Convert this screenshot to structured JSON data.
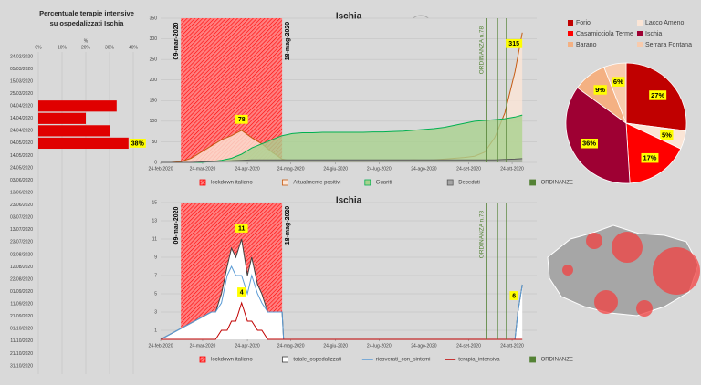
{
  "chart_data": [
    {
      "type": "bar",
      "orientation": "horizontal",
      "title": "Percentuale terapie intensive su ospedalizzati Ischia",
      "xlabel": "%",
      "categories": [
        "24/02/2020",
        "05/03/2020",
        "15/03/2020",
        "25/03/2020",
        "04/04/2020",
        "14/04/2020",
        "24/04/2020",
        "04/05/2020",
        "14/05/2020",
        "24/05/2020",
        "03/06/2020",
        "13/06/2020",
        "23/06/2020",
        "03/07/2020",
        "13/07/2020",
        "23/07/2020",
        "02/08/2020",
        "12/08/2020",
        "22/08/2020",
        "01/09/2020",
        "11/09/2020",
        "21/09/2020",
        "01/10/2020",
        "11/10/2020",
        "21/10/2020",
        "31/10/2020"
      ],
      "values": [
        null,
        null,
        null,
        null,
        33,
        20,
        30,
        38,
        null,
        null,
        null,
        null,
        null,
        null,
        null,
        null,
        null,
        null,
        null,
        null,
        null,
        null,
        null,
        null,
        null,
        null
      ],
      "value_labels": [
        null,
        null,
        null,
        null,
        null,
        null,
        null,
        "38%",
        null,
        null,
        null,
        null,
        null,
        null,
        null,
        null,
        null,
        null,
        null,
        null,
        null,
        null,
        null,
        null,
        null,
        null
      ],
      "color": "#e00000",
      "xlim": [
        0,
        40
      ],
      "xticks": [
        {
          "value": 0,
          "label": "0%"
        },
        {
          "value": 10,
          "label": "10%"
        },
        {
          "value": 20,
          "label": "20%"
        },
        {
          "value": 30,
          "label": "30%"
        },
        {
          "value": 40,
          "label": "40%"
        }
      ],
      "grid": true
    },
    {
      "type": "area",
      "title": "Ischia",
      "x": [
        "2020-02-24",
        "2020-03-02",
        "2020-03-09",
        "2020-03-16",
        "2020-03-23",
        "2020-03-30",
        "2020-04-06",
        "2020-04-13",
        "2020-04-20",
        "2020-04-27",
        "2020-05-04",
        "2020-05-11",
        "2020-05-18",
        "2020-05-25",
        "2020-06-01",
        "2020-06-08",
        "2020-06-15",
        "2020-06-22",
        "2020-06-29",
        "2020-07-06",
        "2020-07-13",
        "2020-07-20",
        "2020-07-27",
        "2020-08-03",
        "2020-08-10",
        "2020-08-17",
        "2020-08-24",
        "2020-08-31",
        "2020-09-07",
        "2020-09-14",
        "2020-09-21",
        "2020-09-28",
        "2020-10-05",
        "2020-10-12",
        "2020-10-19",
        "2020-10-26",
        "2020-10-31"
      ],
      "series": [
        {
          "name": "Attualmente positivi",
          "color": "#c55a11",
          "fill": "#fbe5d6",
          "values": [
            0,
            0,
            2,
            10,
            25,
            40,
            55,
            65,
            78,
            60,
            45,
            25,
            8,
            3,
            2,
            2,
            2,
            1,
            1,
            1,
            1,
            2,
            3,
            5,
            5,
            6,
            5,
            6,
            8,
            10,
            12,
            15,
            25,
            60,
            120,
            220,
            315
          ],
          "value_labels": [
            null,
            null,
            null,
            null,
            null,
            null,
            null,
            null,
            "78",
            null,
            null,
            null,
            null,
            null,
            null,
            null,
            null,
            null,
            null,
            null,
            null,
            null,
            null,
            null,
            null,
            null,
            null,
            null,
            null,
            null,
            null,
            null,
            null,
            null,
            null,
            null,
            "315"
          ]
        },
        {
          "name": "Guariti",
          "color": "#00b050",
          "fill": "#a9d18e",
          "values": [
            0,
            0,
            0,
            0,
            0,
            2,
            5,
            10,
            20,
            35,
            45,
            55,
            65,
            70,
            72,
            72,
            73,
            73,
            73,
            73,
            73,
            74,
            74,
            75,
            76,
            78,
            80,
            82,
            85,
            90,
            95,
            100,
            102,
            104,
            106,
            110,
            115
          ]
        },
        {
          "name": "Deceduti",
          "color": "#595959",
          "fill": "#a5a5a5",
          "values": [
            0,
            0,
            0,
            0,
            1,
            2,
            3,
            4,
            5,
            6,
            6,
            6,
            6,
            6,
            6,
            6,
            6,
            6,
            6,
            6,
            6,
            6,
            6,
            6,
            6,
            6,
            6,
            6,
            6,
            6,
            6,
            6,
            6,
            6,
            7,
            8,
            9
          ]
        }
      ],
      "lockdown": {
        "name": "lockdown italiano",
        "start": "2020-03-09",
        "end": "2020-05-18",
        "start_label": "09-mar-2020",
        "end_label": "18-mag-2020"
      },
      "ordinanze": {
        "name": "ORDINANZE",
        "dates": [
          "2020-10-06",
          "2020-10-14",
          "2020-10-20",
          "2020-10-28"
        ],
        "label": "ORDINANZA n.78",
        "color": "#548235"
      },
      "xlim": [
        "2020-02-24",
        "2020-11-10"
      ],
      "xticks": [
        {
          "value": "2020-02-24",
          "label": "24-feb-2020"
        },
        {
          "value": "2020-03-24",
          "label": "24-mar-2020"
        },
        {
          "value": "2020-04-24",
          "label": "24-apr-2020"
        },
        {
          "value": "2020-05-24",
          "label": "24-mag-2020"
        },
        {
          "value": "2020-06-24",
          "label": "24-giu-2020"
        },
        {
          "value": "2020-07-24",
          "label": "24-lug-2020"
        },
        {
          "value": "2020-08-24",
          "label": "24-ago-2020"
        },
        {
          "value": "2020-09-24",
          "label": "24-set-2020"
        },
        {
          "value": "2020-10-24",
          "label": "24-ott-2020"
        }
      ],
      "ylim": [
        0,
        350
      ],
      "yticks": [
        0,
        50,
        100,
        150,
        200,
        250,
        300,
        350
      ],
      "grid": true
    },
    {
      "type": "line",
      "title": "Ischia",
      "x": [
        "2020-02-24",
        "2020-03-30",
        "2020-04-02",
        "2020-04-06",
        "2020-04-10",
        "2020-04-13",
        "2020-04-16",
        "2020-04-20",
        "2020-04-24",
        "2020-04-27",
        "2020-05-01",
        "2020-05-04",
        "2020-05-08",
        "2020-05-11",
        "2020-05-15",
        "2020-05-18",
        "2020-05-19",
        "2020-10-26",
        "2020-10-28",
        "2020-10-31"
      ],
      "series": [
        {
          "name": "totale_ospedalizzati",
          "color": "#404040",
          "fill": "#ffffff",
          "values": [
            0,
            3,
            3,
            5,
            8,
            10,
            9,
            11,
            7,
            9,
            6,
            5,
            3,
            3,
            3,
            3,
            0,
            0,
            3,
            6
          ],
          "value_labels": [
            null,
            null,
            null,
            null,
            null,
            null,
            null,
            "11",
            null,
            null,
            null,
            null,
            null,
            null,
            null,
            null,
            null,
            null,
            null,
            "6"
          ]
        },
        {
          "name": "ricoverati_con_sintomi",
          "color": "#5b9bd5",
          "values": [
            0,
            3,
            3,
            4,
            7,
            8,
            7,
            7,
            5,
            7,
            5,
            4,
            3,
            3,
            3,
            3,
            0,
            0,
            3,
            6
          ]
        },
        {
          "name": "terapia_intensiva",
          "color": "#c00000",
          "values": [
            0,
            0,
            0,
            1,
            1,
            2,
            2,
            4,
            2,
            2,
            1,
            1,
            0,
            0,
            0,
            0,
            0,
            0,
            0,
            0
          ],
          "value_labels": [
            null,
            null,
            null,
            null,
            null,
            null,
            null,
            "4",
            null,
            null,
            null,
            null,
            null,
            null,
            null,
            null,
            null,
            null,
            null,
            null
          ]
        }
      ],
      "lockdown": {
        "name": "lockdown italiano",
        "start": "2020-03-09",
        "end": "2020-05-18",
        "start_label": "09-mar-2020",
        "end_label": "18-mag-2020"
      },
      "ordinanze": {
        "name": "ORDINANZE",
        "dates": [
          "2020-10-06",
          "2020-10-14",
          "2020-10-20",
          "2020-10-28"
        ],
        "label": "ORDINANZA n.78",
        "color": "#548235"
      },
      "xlim": [
        "2020-02-24",
        "2020-11-10"
      ],
      "xticks": [
        {
          "value": "2020-02-24",
          "label": "24-feb-2020"
        },
        {
          "value": "2020-03-24",
          "label": "24-mar-2020"
        },
        {
          "value": "2020-04-24",
          "label": "24-apr-2020"
        },
        {
          "value": "2020-05-24",
          "label": "24-mag-2020"
        },
        {
          "value": "2020-06-24",
          "label": "24-giu-2020"
        },
        {
          "value": "2020-07-24",
          "label": "24-lug-2020"
        },
        {
          "value": "2020-08-24",
          "label": "24-ago-2020"
        },
        {
          "value": "2020-09-24",
          "label": "24-set-2020"
        },
        {
          "value": "2020-10-24",
          "label": "24-ott-2020"
        }
      ],
      "ylim": [
        0,
        15
      ],
      "yticks": [
        1,
        3,
        5,
        7,
        9,
        11,
        13,
        15
      ],
      "grid": true
    },
    {
      "type": "pie",
      "categories": [
        "Forio",
        "Lacco Ameno",
        "Casamicciola Terme",
        "Ischia",
        "Barano",
        "Serrara Fontana"
      ],
      "values": [
        27,
        5,
        17,
        36,
        9,
        6
      ],
      "value_labels": [
        "27%",
        "5%",
        "17%",
        "36%",
        "9%",
        "6%"
      ],
      "colors": [
        "#c00000",
        "#fbe5d6",
        "#ff0000",
        "#9e0033",
        "#f4b183",
        "#f8cbad"
      ]
    }
  ]
}
